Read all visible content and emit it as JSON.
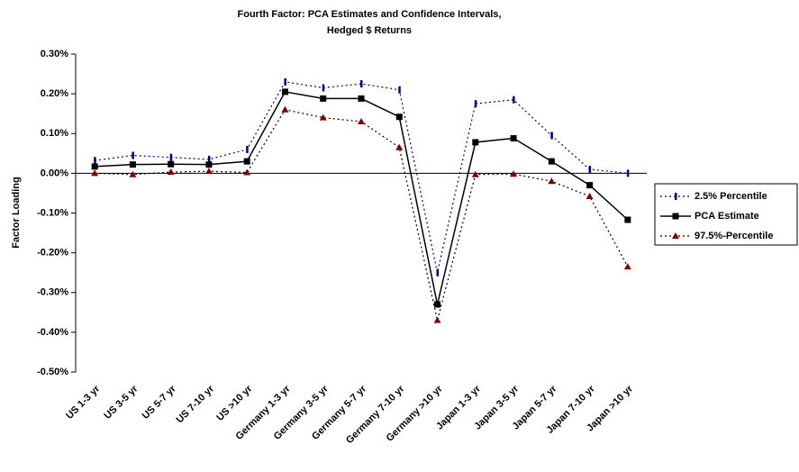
{
  "chart_data": {
    "type": "line",
    "title": [
      "Fourth Factor: PCA Estimates and Confidence Intervals,",
      "Hedged $ Returns"
    ],
    "y_label": "Factor Loading",
    "categories": [
      "US 1-3 yr",
      "US 3-5 yr",
      "US 5-7 yr",
      "US 7-10 yr",
      "US >10 yr",
      "Germany 1-3 yr",
      "Germany 3-5 yr",
      "Germany 5-7 yr",
      "Germany 7-10 yr",
      "Germany >10 yr",
      "Japan 1-3 yr",
      "Japan 3-5 yr",
      "Japan 5-7 yr",
      "Japan 7-10 yr",
      "Japan >10 yr"
    ],
    "ylim": [
      -0.5,
      0.3
    ],
    "yticks": [
      {
        "value": 0.3,
        "label": "0.30%"
      },
      {
        "value": 0.2,
        "label": "0.20%"
      },
      {
        "value": 0.1,
        "label": "0.10%"
      },
      {
        "value": 0,
        "label": "0.00%"
      },
      {
        "value": -0.1,
        "label": "-0.10%"
      },
      {
        "value": -0.2,
        "label": "-0.20%"
      },
      {
        "value": -0.3,
        "label": "-0.30%"
      },
      {
        "value": -0.4,
        "label": "-0.40%"
      },
      {
        "value": -0.5,
        "label": "-0.50%"
      }
    ],
    "grid": false,
    "legend": "right",
    "series": [
      {
        "name": "2.5% Percentile",
        "color": "#000080",
        "line_color": "#000080",
        "dash": "2,3",
        "marker": "dash",
        "values": [
          0.032,
          0.045,
          0.04,
          0.035,
          0.06,
          0.23,
          0.215,
          0.225,
          0.21,
          -0.25,
          0.175,
          0.185,
          0.095,
          0.01,
          0.0
        ]
      },
      {
        "name": "PCA Estimate",
        "color": "#000000",
        "line_color": "#000000",
        "dash": "none",
        "marker": "square",
        "values": [
          0.017,
          0.022,
          0.023,
          0.022,
          0.03,
          0.205,
          0.188,
          0.188,
          0.142,
          -0.33,
          0.078,
          0.088,
          0.03,
          -0.03,
          -0.117
        ]
      },
      {
        "name": "97.5%-Percentile",
        "color": "#800000",
        "line_color": "#000000",
        "dash": "2,3",
        "marker": "triangle",
        "values": [
          0.0,
          -0.003,
          0.003,
          0.005,
          0.002,
          0.16,
          0.14,
          0.13,
          0.065,
          -0.37,
          -0.003,
          -0.002,
          -0.02,
          -0.058,
          -0.235
        ]
      }
    ]
  }
}
